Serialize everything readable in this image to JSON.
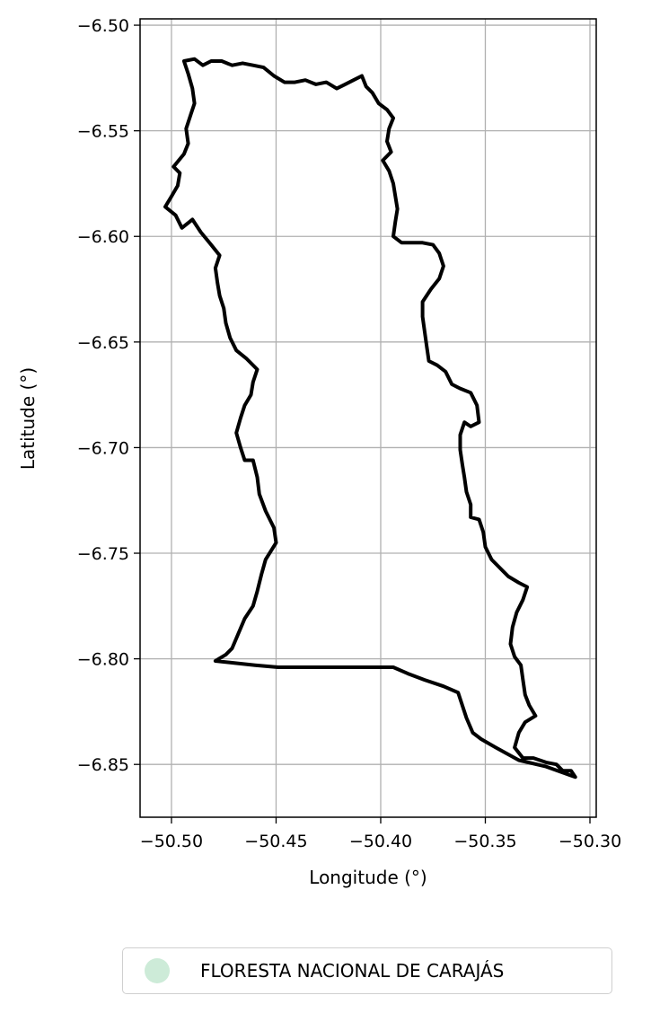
{
  "chart_data": {
    "type": "map-outline",
    "xlabel": "Longitude (°)",
    "ylabel": "Latitude (°)",
    "xlim": [
      -50.515,
      -50.297
    ],
    "ylim": [
      -6.875,
      -6.497
    ],
    "x_ticks": [
      -50.5,
      -50.45,
      -50.4,
      -50.35,
      -50.3
    ],
    "x_tick_labels": [
      "−50.50",
      "−50.45",
      "−50.40",
      "−50.35",
      "−50.30"
    ],
    "y_ticks": [
      -6.5,
      -6.55,
      -6.6,
      -6.65,
      -6.7,
      -6.75,
      -6.8,
      -6.85
    ],
    "y_tick_labels": [
      "−6.50",
      "−6.55",
      "−6.60",
      "−6.65",
      "−6.70",
      "−6.75",
      "−6.80",
      "−6.85"
    ],
    "grid": true,
    "legend": {
      "placement": "below-center",
      "entries": [
        {
          "label": "FLORESTA NACIONAL DE CARAJÁS",
          "color": "#cdebd8"
        }
      ]
    },
    "boundary_color": "#000000",
    "boundary": [
      [
        -50.479,
        -6.801
      ],
      [
        -50.474,
        -6.798
      ],
      [
        -50.471,
        -6.795
      ],
      [
        -50.468,
        -6.788
      ],
      [
        -50.465,
        -6.781
      ],
      [
        -50.461,
        -6.775
      ],
      [
        -50.459,
        -6.768
      ],
      [
        -50.457,
        -6.76
      ],
      [
        -50.455,
        -6.753
      ],
      [
        -50.45,
        -6.745
      ],
      [
        -50.451,
        -6.738
      ],
      [
        -50.455,
        -6.73
      ],
      [
        -50.458,
        -6.722
      ],
      [
        -50.459,
        -6.714
      ],
      [
        -50.461,
        -6.706
      ],
      [
        -50.465,
        -6.706
      ],
      [
        -50.467,
        -6.7
      ],
      [
        -50.469,
        -6.693
      ],
      [
        -50.467,
        -6.686
      ],
      [
        -50.465,
        -6.68
      ],
      [
        -50.462,
        -6.675
      ],
      [
        -50.461,
        -6.669
      ],
      [
        -50.459,
        -6.663
      ],
      [
        -50.464,
        -6.658
      ],
      [
        -50.469,
        -6.654
      ],
      [
        -50.472,
        -6.648
      ],
      [
        -50.474,
        -6.641
      ],
      [
        -50.475,
        -6.634
      ],
      [
        -50.477,
        -6.628
      ],
      [
        -50.478,
        -6.622
      ],
      [
        -50.479,
        -6.615
      ],
      [
        -50.477,
        -6.609
      ],
      [
        -50.481,
        -6.604
      ],
      [
        -50.486,
        -6.598
      ],
      [
        -50.49,
        -6.592
      ],
      [
        -50.495,
        -6.596
      ],
      [
        -50.498,
        -6.59
      ],
      [
        -50.503,
        -6.586
      ],
      [
        -50.5,
        -6.581
      ],
      [
        -50.497,
        -6.576
      ],
      [
        -50.496,
        -6.57
      ],
      [
        -50.499,
        -6.567
      ],
      [
        -50.494,
        -6.561
      ],
      [
        -50.492,
        -6.556
      ],
      [
        -50.493,
        -6.549
      ],
      [
        -50.491,
        -6.543
      ],
      [
        -50.489,
        -6.537
      ],
      [
        -50.49,
        -6.53
      ],
      [
        -50.492,
        -6.523
      ],
      [
        -50.494,
        -6.517
      ],
      [
        -50.489,
        -6.516
      ],
      [
        -50.485,
        -6.519
      ],
      [
        -50.481,
        -6.517
      ],
      [
        -50.476,
        -6.517
      ],
      [
        -50.471,
        -6.519
      ],
      [
        -50.466,
        -6.518
      ],
      [
        -50.461,
        -6.519
      ],
      [
        -50.456,
        -6.52
      ],
      [
        -50.451,
        -6.524
      ],
      [
        -50.446,
        -6.527
      ],
      [
        -50.441,
        -6.527
      ],
      [
        -50.436,
        -6.526
      ],
      [
        -50.431,
        -6.528
      ],
      [
        -50.426,
        -6.527
      ],
      [
        -50.421,
        -6.53
      ],
      [
        -50.417,
        -6.528
      ],
      [
        -50.413,
        -6.526
      ],
      [
        -50.409,
        -6.524
      ],
      [
        -50.407,
        -6.529
      ],
      [
        -50.404,
        -6.532
      ],
      [
        -50.401,
        -6.537
      ],
      [
        -50.397,
        -6.54
      ],
      [
        -50.394,
        -6.544
      ],
      [
        -50.396,
        -6.549
      ],
      [
        -50.397,
        -6.555
      ],
      [
        -50.395,
        -6.56
      ],
      [
        -50.399,
        -6.564
      ],
      [
        -50.396,
        -6.569
      ],
      [
        -50.394,
        -6.575
      ],
      [
        -50.393,
        -6.581
      ],
      [
        -50.392,
        -6.587
      ],
      [
        -50.393,
        -6.593
      ],
      [
        -50.394,
        -6.6
      ],
      [
        -50.39,
        -6.603
      ],
      [
        -50.385,
        -6.603
      ],
      [
        -50.38,
        -6.603
      ],
      [
        -50.375,
        -6.604
      ],
      [
        -50.372,
        -6.608
      ],
      [
        -50.37,
        -6.614
      ],
      [
        -50.372,
        -6.62
      ],
      [
        -50.376,
        -6.625
      ],
      [
        -50.38,
        -6.631
      ],
      [
        -50.38,
        -6.638
      ],
      [
        -50.379,
        -6.645
      ],
      [
        -50.378,
        -6.652
      ],
      [
        -50.377,
        -6.659
      ],
      [
        -50.373,
        -6.661
      ],
      [
        -50.369,
        -6.664
      ],
      [
        -50.366,
        -6.67
      ],
      [
        -50.362,
        -6.672
      ],
      [
        -50.357,
        -6.674
      ],
      [
        -50.354,
        -6.68
      ],
      [
        -50.353,
        -6.688
      ],
      [
        -50.357,
        -6.69
      ],
      [
        -50.36,
        -6.688
      ],
      [
        -50.362,
        -6.694
      ],
      [
        -50.362,
        -6.701
      ],
      [
        -50.361,
        -6.708
      ],
      [
        -50.36,
        -6.714
      ],
      [
        -50.359,
        -6.721
      ],
      [
        -50.357,
        -6.727
      ],
      [
        -50.357,
        -6.733
      ],
      [
        -50.353,
        -6.734
      ],
      [
        -50.351,
        -6.74
      ],
      [
        -50.35,
        -6.747
      ],
      [
        -50.347,
        -6.753
      ],
      [
        -50.343,
        -6.757
      ],
      [
        -50.339,
        -6.761
      ],
      [
        -50.334,
        -6.764
      ],
      [
        -50.33,
        -6.766
      ],
      [
        -50.332,
        -6.772
      ],
      [
        -50.335,
        -6.778
      ],
      [
        -50.337,
        -6.785
      ],
      [
        -50.338,
        -6.793
      ],
      [
        -50.336,
        -6.799
      ],
      [
        -50.333,
        -6.803
      ],
      [
        -50.332,
        -6.81
      ],
      [
        -50.331,
        -6.817
      ],
      [
        -50.329,
        -6.822
      ],
      [
        -50.326,
        -6.827
      ],
      [
        -50.331,
        -6.83
      ],
      [
        -50.334,
        -6.835
      ],
      [
        -50.336,
        -6.842
      ],
      [
        -50.332,
        -6.847
      ],
      [
        -50.327,
        -6.847
      ],
      [
        -50.321,
        -6.849
      ],
      [
        -50.316,
        -6.85
      ],
      [
        -50.313,
        -6.853
      ],
      [
        -50.309,
        -6.853
      ],
      [
        -50.307,
        -6.856
      ],
      [
        -50.321,
        -6.851
      ],
      [
        -50.334,
        -6.848
      ],
      [
        -50.345,
        -6.842
      ],
      [
        -50.352,
        -6.838
      ],
      [
        -50.356,
        -6.835
      ],
      [
        -50.359,
        -6.828
      ],
      [
        -50.363,
        -6.816
      ],
      [
        -50.37,
        -6.813
      ],
      [
        -50.379,
        -6.81
      ],
      [
        -50.387,
        -6.807
      ],
      [
        -50.394,
        -6.804
      ],
      [
        -50.403,
        -6.804
      ],
      [
        -50.417,
        -6.804
      ],
      [
        -50.432,
        -6.804
      ],
      [
        -50.449,
        -6.804
      ],
      [
        -50.46,
        -6.803
      ],
      [
        -50.47,
        -6.802
      ],
      [
        -50.479,
        -6.801
      ]
    ]
  }
}
